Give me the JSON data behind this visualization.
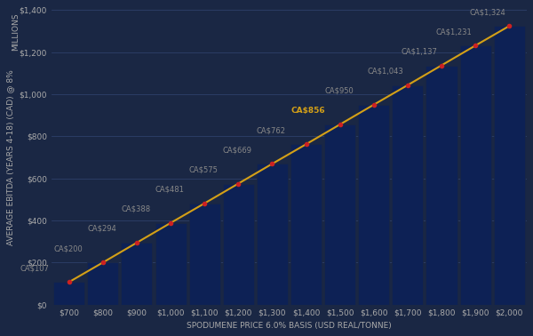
{
  "categories": [
    700,
    800,
    900,
    1000,
    1100,
    1200,
    1300,
    1400,
    1500,
    1600,
    1700,
    1800,
    1900,
    2000
  ],
  "values": [
    107,
    200,
    294,
    388,
    481,
    575,
    669,
    762,
    856,
    950,
    1043,
    1137,
    1231,
    1324
  ],
  "labels": [
    "CA$107",
    "CA$200",
    "CA$294",
    "CA$388",
    "CA$481",
    "CA$575",
    "CA$669",
    "CA$762",
    "CA$856",
    "CA$950",
    "CA$1,043",
    "CA$1,137",
    "CA$1,231",
    "CA$1,324"
  ],
  "highlight_index": 8,
  "bar_color": "#0d2155",
  "highlight_label_color": "#d4a017",
  "normal_label_color": "#888888",
  "dot_color": "#cc2222",
  "line_color": "#d4a017",
  "background_color": "#1a2744",
  "plot_bg_color": "#1a2744",
  "xlabel": "SPODUMENE PRICE 6.0% BASIS (USD REAL/TONNE)",
  "ylabel": "AVERAGE EBITDA (YEARS 4-18) (CAD) @ 8%",
  "ylabel2": "MILLIONS",
  "ylim": [
    0,
    1400
  ],
  "yticks": [
    0,
    200,
    400,
    600,
    800,
    1000,
    1200,
    1400
  ],
  "ytick_labels": [
    "$0",
    "$200",
    "$400",
    "$600",
    "$800",
    "$1,000",
    "$1,200",
    "$1,400"
  ],
  "xtick_labels": [
    "$700",
    "$800",
    "$900",
    "$1,000",
    "$1,100",
    "$1,200",
    "$1,300",
    "$1,400",
    "$1,500",
    "$1,600",
    "$1,700",
    "$1,800",
    "$1,900",
    "$2,000"
  ],
  "label_fontsize": 6.0,
  "axis_label_fontsize": 6.5,
  "tick_fontsize": 6.5,
  "grid_color": "#2e3f6a",
  "tick_color": "#aaaaaa",
  "bar_edge_color": "#1a2744"
}
